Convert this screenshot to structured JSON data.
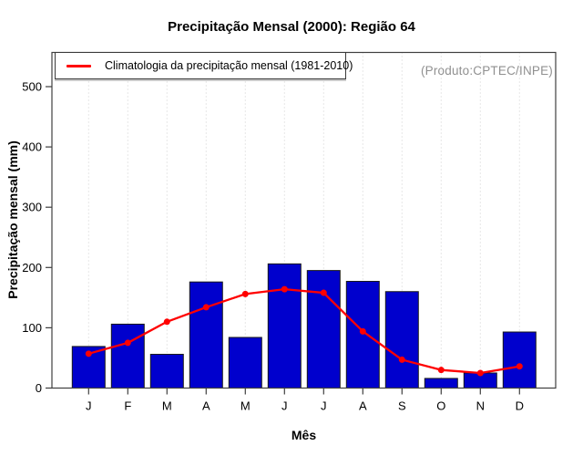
{
  "chart_data": {
    "type": "bar",
    "title": "Precipitação Mensal (2000): Região 64",
    "xlabel": "Mês",
    "ylabel": "Precipitação mensal (mm)",
    "annotation": "(Produto:CPTEC/INPE)",
    "categories": [
      "J",
      "F",
      "M",
      "A",
      "M",
      "J",
      "J",
      "A",
      "S",
      "O",
      "N",
      "D"
    ],
    "series": [
      {
        "name": "Precipitação Mensal (2000)",
        "type": "bar",
        "color": "#0000CD",
        "values": [
          69,
          106,
          56,
          176,
          84,
          206,
          195,
          177,
          160,
          16,
          25,
          93
        ]
      },
      {
        "name": "Climatologia da precipitação mensal (1981-2010)",
        "type": "line",
        "color": "#FF0000",
        "values": [
          57,
          75,
          110,
          134,
          156,
          164,
          158,
          94,
          47,
          30,
          25,
          36
        ]
      }
    ],
    "ylim": [
      0,
      557
    ],
    "yticks": [
      0,
      100,
      200,
      300,
      400,
      500
    ],
    "grid": "vertical-dotted",
    "legend_position": "top-left"
  },
  "colors": {
    "bar_fill": "#0000CD",
    "bar_border": "#1a1a1a",
    "line": "#FF0000",
    "gridline": "#d0d0d0",
    "frame": "#3f3f3f",
    "tick": "#3f3f3f",
    "annotation_text": "#909090"
  }
}
